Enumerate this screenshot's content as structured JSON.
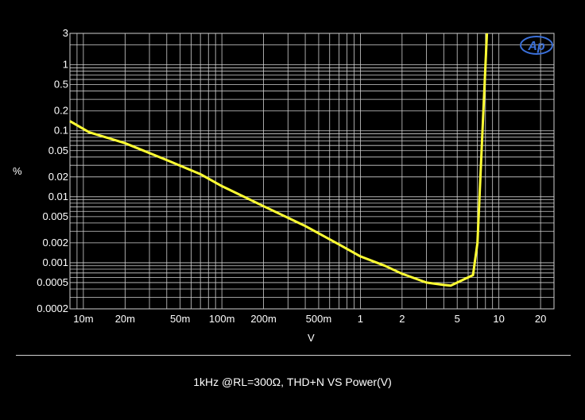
{
  "chart_data": {
    "type": "line",
    "title": "",
    "xlabel": "V",
    "ylabel": "%",
    "x_scale": "log",
    "y_scale": "log",
    "xlim": [
      0.008,
      25
    ],
    "ylim": [
      0.0002,
      3
    ],
    "grid": true,
    "x_ticks": [
      {
        "value": 0.01,
        "label": "10m"
      },
      {
        "value": 0.02,
        "label": "20m"
      },
      {
        "value": 0.05,
        "label": "50m"
      },
      {
        "value": 0.1,
        "label": "100m"
      },
      {
        "value": 0.2,
        "label": "200m"
      },
      {
        "value": 0.5,
        "label": "500m"
      },
      {
        "value": 1,
        "label": "1"
      },
      {
        "value": 2,
        "label": "2"
      },
      {
        "value": 5,
        "label": "5"
      },
      {
        "value": 10,
        "label": "10"
      },
      {
        "value": 20,
        "label": "20"
      }
    ],
    "y_ticks": [
      {
        "value": 3,
        "label": "3"
      },
      {
        "value": 1,
        "label": "1"
      },
      {
        "value": 0.5,
        "label": "0.5"
      },
      {
        "value": 0.2,
        "label": "0.2"
      },
      {
        "value": 0.1,
        "label": "0.1"
      },
      {
        "value": 0.05,
        "label": "0.05"
      },
      {
        "value": 0.02,
        "label": "0.02"
      },
      {
        "value": 0.01,
        "label": "0.01"
      },
      {
        "value": 0.005,
        "label": "0.005"
      },
      {
        "value": 0.002,
        "label": "0.002"
      },
      {
        "value": 0.001,
        "label": "0.001"
      },
      {
        "value": 0.0005,
        "label": "0.0005"
      },
      {
        "value": 0.0002,
        "label": "0.0002"
      }
    ],
    "series": [
      {
        "color": "#ffff33",
        "x": [
          0.008,
          0.011,
          0.02,
          0.04,
          0.07,
          0.1,
          0.2,
          0.4,
          0.7,
          1.0,
          1.5,
          2.0,
          3.0,
          4.0,
          4.5,
          5.0,
          6.0,
          6.5,
          7.0,
          7.5,
          8.0,
          8.2
        ],
        "y": [
          0.14,
          0.095,
          0.065,
          0.036,
          0.022,
          0.0145,
          0.0072,
          0.0036,
          0.0019,
          0.00125,
          0.0009,
          0.00068,
          0.0005,
          0.00046,
          0.00045,
          0.0005,
          0.0006,
          0.00065,
          0.002,
          0.05,
          1.0,
          3.0
        ]
      }
    ]
  },
  "caption": "1kHz @RL=300Ω, THD+N VS Power(V)",
  "logo_text": "Ap",
  "colors": {
    "background": "#000000",
    "grid": "#cfcfcf",
    "trace": "#ffff33",
    "logo": "#3a6fd8"
  }
}
